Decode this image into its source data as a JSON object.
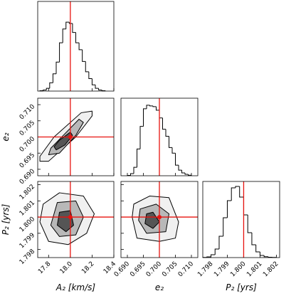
{
  "chart_data": [
    {
      "type": "hist",
      "bins": [
        17.72,
        17.75,
        17.78,
        17.81,
        17.84,
        17.87,
        17.9,
        17.93,
        17.96,
        17.99,
        18.02,
        18.05,
        18.08,
        18.11,
        18.14,
        18.17,
        18.2,
        18.23,
        18.26,
        18.29,
        18.32
      ],
      "counts": [
        5,
        15,
        40,
        120,
        250,
        420,
        700,
        900,
        1000,
        980,
        850,
        700,
        600,
        430,
        280,
        180,
        90,
        40,
        15,
        5
      ],
      "xlim": [
        17.7,
        18.4
      ],
      "ylim": [
        0,
        1300
      ],
      "xticks": [
        17.8,
        18,
        18.2,
        18.4
      ],
      "truth": 18,
      "color": "#000000",
      "truth_color": "#e8130f"
    },
    {
      "type": "contour",
      "xlim": [
        17.7,
        18.4
      ],
      "ylim": [
        0.688,
        0.712
      ],
      "xticks": [
        17.8,
        18,
        18.2,
        18.4
      ],
      "yticks": [
        {
          "value": 0.69,
          "label": "0.690"
        },
        0.695,
        {
          "value": 0.7,
          "label": "0.700"
        },
        0.705,
        {
          "value": 0.71,
          "label": "0.710"
        }
      ],
      "ylabel": "e₂",
      "contours": [
        {
          "x": [
            17.72,
            17.8,
            18.05,
            18.2,
            18.2,
            18.1,
            17.85,
            17.72
          ],
          "y": [
            0.6925,
            0.6925,
            0.7,
            0.7065,
            0.708,
            0.7075,
            0.7,
            0.694
          ]
        },
        {
          "x": [
            17.8,
            17.9,
            18.05,
            18.12,
            18.08,
            17.95,
            17.82
          ],
          "y": [
            0.6945,
            0.695,
            0.7005,
            0.7045,
            0.7055,
            0.701,
            0.6965
          ]
        },
        {
          "x": [
            17.87,
            17.95,
            18.02,
            18.0,
            17.9,
            17.85
          ],
          "y": [
            0.696,
            0.6975,
            0.7005,
            0.7015,
            0.699,
            0.697
          ]
        }
      ],
      "truth": {
        "x": 18,
        "y": 0.7
      },
      "truth_color": "#e8130f"
    },
    {
      "type": "contour",
      "xlim": [
        17.7,
        18.4
      ],
      "ylim": [
        1.7975,
        1.8022
      ],
      "xticks": [
        17.8,
        {
          "value": 18,
          "label": "18.0"
        },
        18.2,
        18.4
      ],
      "yticks": [
        1.798,
        1.799,
        {
          "value": 1.8,
          "label": "1.800"
        },
        1.801,
        1.802
      ],
      "xlabel": "A₂ [km/s]",
      "ylabel": "P₂ [yrs]",
      "contours": [
        {
          "x": [
            17.72,
            17.8,
            17.98,
            18.15,
            18.22,
            18.12,
            17.9,
            17.75
          ],
          "y": [
            1.7997,
            1.7985,
            1.7983,
            1.799,
            1.8002,
            1.8013,
            1.8015,
            1.8008
          ]
        },
        {
          "x": [
            17.82,
            17.9,
            18.05,
            18.12,
            18.05,
            17.88
          ],
          "y": [
            1.7995,
            1.7988,
            1.7989,
            1.8,
            1.801,
            1.8009
          ]
        },
        {
          "x": [
            17.88,
            17.96,
            18.03,
            18.0,
            17.9
          ],
          "y": [
            1.7995,
            1.7991,
            1.7995,
            1.8004,
            1.8003
          ]
        }
      ],
      "truth": {
        "x": 18,
        "y": 1.8
      },
      "truth_color": "#e8130f"
    },
    {
      "type": "hist",
      "bins": [
        0.69,
        0.691,
        0.692,
        0.693,
        0.694,
        0.695,
        0.696,
        0.697,
        0.698,
        0.699,
        0.7,
        0.701,
        0.702,
        0.703,
        0.704,
        0.705,
        0.706,
        0.707,
        0.708,
        0.709,
        0.71
      ],
      "counts": [
        5,
        30,
        120,
        380,
        700,
        950,
        1000,
        990,
        980,
        930,
        820,
        660,
        560,
        400,
        320,
        150,
        80,
        40,
        20,
        8
      ],
      "xlim": [
        0.688,
        0.712
      ],
      "ylim": [
        0,
        1100
      ],
      "xticks": [
        0.69,
        0.695,
        0.7,
        0.705,
        0.71
      ],
      "truth": 0.7,
      "color": "#000000",
      "truth_color": "#e8130f"
    },
    {
      "type": "contour",
      "xlim": [
        0.688,
        0.712
      ],
      "ylim": [
        1.7975,
        1.8022
      ],
      "xticks": [
        {
          "value": 0.69,
          "label": "0.690"
        },
        0.695,
        {
          "value": 0.7,
          "label": "0.700"
        },
        0.705,
        {
          "value": 0.71,
          "label": "0.710"
        }
      ],
      "yticks": [
        1.798,
        1.799,
        1.8,
        1.801,
        1.802
      ],
      "xlabel": "e₂",
      "contours": [
        {
          "x": [
            0.6915,
            0.693,
            0.7,
            0.705,
            0.706,
            0.703,
            0.697,
            0.692
          ],
          "y": [
            1.8,
            1.7987,
            1.7985,
            1.7987,
            1.7997,
            1.8012,
            1.8013,
            1.8008
          ]
        },
        {
          "x": [
            0.6935,
            0.696,
            0.702,
            0.703,
            0.699,
            0.694
          ],
          "y": [
            1.7998,
            1.799,
            1.7991,
            1.8002,
            1.8008,
            1.8005
          ]
        },
        {
          "x": [
            0.6955,
            0.698,
            0.7,
            0.698,
            0.696
          ],
          "y": [
            1.7996,
            1.7993,
            1.7997,
            1.8003,
            1.8002
          ]
        }
      ],
      "truth": {
        "x": 0.7,
        "y": 1.8
      },
      "truth_color": "#e8130f"
    },
    {
      "type": "hist",
      "bins": [
        1.7975,
        1.79775,
        1.798,
        1.79825,
        1.7985,
        1.79875,
        1.799,
        1.79925,
        1.7995,
        1.79975,
        1.8,
        1.80025,
        1.8005,
        1.80075,
        1.801,
        1.80125,
        1.8015,
        1.80175,
        1.802
      ],
      "counts": [
        2,
        10,
        40,
        120,
        300,
        560,
        800,
        980,
        1000,
        850,
        600,
        350,
        180,
        80,
        30,
        12,
        5,
        2
      ],
      "xlim": [
        1.7975,
        1.8022
      ],
      "ylim": [
        0,
        1070
      ],
      "xticks": [
        1.798,
        1.799,
        {
          "value": 1.8,
          "label": "1.800"
        },
        1.801,
        1.802
      ],
      "xlabel": "P₂ [yrs]",
      "truth": 1.8,
      "color": "#000000",
      "truth_color": "#e8130f"
    }
  ]
}
